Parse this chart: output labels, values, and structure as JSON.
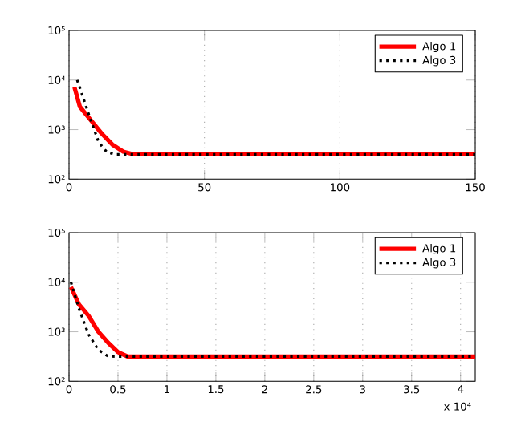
{
  "chart_data": [
    {
      "type": "line",
      "log": "y",
      "grid": "x",
      "legend": "top right",
      "marker": "none",
      "xlim": [
        0,
        150
      ],
      "xticks": [
        0,
        50,
        100,
        150
      ],
      "ylim": [
        100,
        100000
      ],
      "yticks": [
        {
          "value": 100,
          "label": "10²"
        },
        {
          "value": 1000,
          "label": "10³"
        },
        {
          "value": 10000,
          "label": "10⁴"
        },
        {
          "value": 100000,
          "label": "10⁵"
        }
      ],
      "series": [
        {
          "name": "Algo 1",
          "color": "#ff0000",
          "line_style": "solid",
          "x": [
            2,
            4,
            8,
            12,
            16,
            20,
            24,
            150
          ],
          "values": [
            7200,
            2900,
            1560,
            840,
            500,
            360,
            316,
            316
          ]
        },
        {
          "name": "Algo 3",
          "color": "#000000",
          "line_style": "dotted",
          "x": [
            3,
            5,
            8,
            11,
            14,
            17,
            150
          ],
          "values": [
            10000,
            4800,
            1560,
            550,
            350,
            316,
            316
          ]
        }
      ]
    },
    {
      "type": "line",
      "log": "y",
      "grid": "x",
      "legend": "top right",
      "marker": "none",
      "xlim": [
        0,
        4.15
      ],
      "xticks": [
        0,
        0.5,
        1,
        1.5,
        2,
        2.5,
        3,
        3.5,
        4
      ],
      "ylim": [
        100,
        100000
      ],
      "yticks": [
        {
          "value": 100,
          "label": "10²"
        },
        {
          "value": 1000,
          "label": "10³"
        },
        {
          "value": 10000,
          "label": "10⁴"
        },
        {
          "value": 100000,
          "label": "10⁵"
        }
      ],
      "annotations": [
        "x 10⁴"
      ],
      "series": [
        {
          "name": "Algo 1",
          "color": "#ff0000",
          "line_style": "solid",
          "x": [
            0.02,
            0.1,
            0.2,
            0.3,
            0.4,
            0.5,
            0.6,
            4.15
          ],
          "values": [
            8000,
            3600,
            2100,
            1000,
            600,
            390,
            316,
            316
          ]
        },
        {
          "name": "Algo 3",
          "color": "#000000",
          "line_style": "dotted",
          "x": [
            0.02,
            0.1,
            0.2,
            0.3,
            0.4,
            0.5,
            4.15
          ],
          "values": [
            10000,
            3000,
            880,
            430,
            320,
            316,
            316
          ]
        }
      ]
    }
  ]
}
